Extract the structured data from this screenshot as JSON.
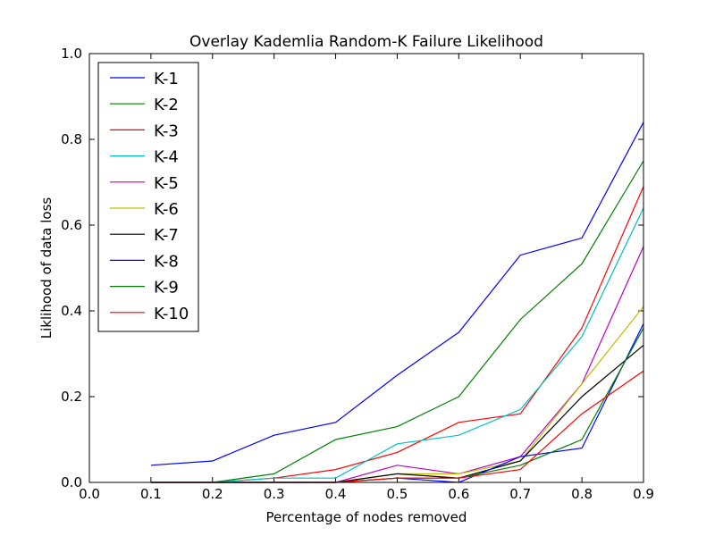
{
  "chart_data": {
    "type": "line",
    "title": "Overlay Kademlia Random-K Failure Likelihood",
    "xlabel": "Percentage of nodes removed",
    "ylabel": "Liklihood of data loss",
    "xlim": [
      0.0,
      0.9
    ],
    "ylim": [
      0.0,
      1.0
    ],
    "xticks": [
      "0.0",
      "0.1",
      "0.2",
      "0.3",
      "0.4",
      "0.5",
      "0.6",
      "0.7",
      "0.8",
      "0.9"
    ],
    "yticks": [
      "0.0",
      "0.2",
      "0.4",
      "0.6",
      "0.8",
      "1.0"
    ],
    "grid": false,
    "legend_position": "top-left",
    "x": [
      0.1,
      0.2,
      0.3,
      0.4,
      0.5,
      0.6,
      0.7,
      0.8,
      0.9
    ],
    "series": [
      {
        "name": "K-1",
        "color": "#0000ff",
        "values": [
          0.04,
          0.05,
          0.11,
          0.14,
          0.25,
          0.35,
          0.53,
          0.57,
          0.84
        ]
      },
      {
        "name": "K-2",
        "color": "#008000",
        "values": [
          0.0,
          0.0,
          0.02,
          0.1,
          0.13,
          0.2,
          0.38,
          0.51,
          0.75
        ]
      },
      {
        "name": "K-3",
        "color": "#ff0000",
        "values": [
          0.0,
          0.0,
          0.01,
          0.03,
          0.07,
          0.14,
          0.16,
          0.36,
          0.69
        ]
      },
      {
        "name": "K-4",
        "color": "#00bfbf",
        "values": [
          0.0,
          0.0,
          0.01,
          0.01,
          0.09,
          0.11,
          0.17,
          0.34,
          0.64
        ]
      },
      {
        "name": "K-5",
        "color": "#bf00bf",
        "values": [
          0.0,
          0.0,
          0.0,
          0.0,
          0.04,
          0.02,
          0.06,
          0.23,
          0.55
        ]
      },
      {
        "name": "K-6",
        "color": "#bfbf00",
        "values": [
          0.0,
          0.0,
          0.0,
          0.0,
          0.02,
          0.02,
          0.05,
          0.23,
          0.41
        ]
      },
      {
        "name": "K-7",
        "color": "#000000",
        "values": [
          0.0,
          0.0,
          0.0,
          0.0,
          0.02,
          0.01,
          0.05,
          0.2,
          0.32
        ]
      },
      {
        "name": "K-8",
        "color": "#0000ff",
        "values": [
          0.0,
          0.0,
          0.0,
          0.0,
          0.01,
          0.0,
          0.06,
          0.08,
          0.37
        ]
      },
      {
        "name": "K-9",
        "color": "#008000",
        "values": [
          0.0,
          0.0,
          0.0,
          0.0,
          0.01,
          0.01,
          0.04,
          0.1,
          0.36
        ]
      },
      {
        "name": "K-10",
        "color": "#ff0000",
        "values": [
          0.0,
          0.0,
          0.0,
          0.0,
          0.01,
          0.01,
          0.03,
          0.16,
          0.26
        ]
      }
    ]
  }
}
